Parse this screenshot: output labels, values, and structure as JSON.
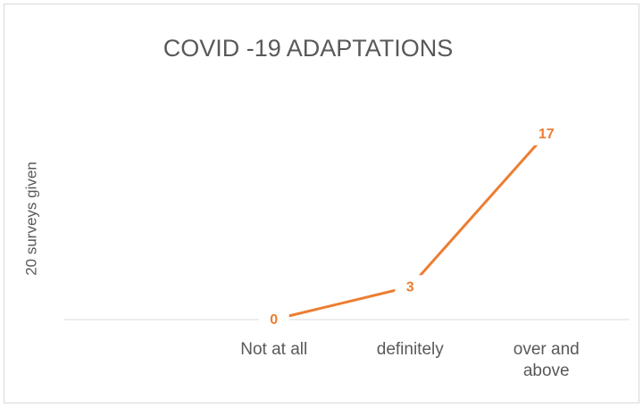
{
  "chart_data": {
    "type": "line",
    "title": "COVID -19 ADAPTATIONS",
    "y_label": "20 surveys given",
    "categories": [
      null,
      "Not at all",
      "definitely",
      "over and above"
    ],
    "series": [
      {
        "color": "#ED7D31",
        "values": [
          null,
          0,
          3,
          17
        ]
      }
    ],
    "ylim": [
      0,
      20
    ]
  }
}
